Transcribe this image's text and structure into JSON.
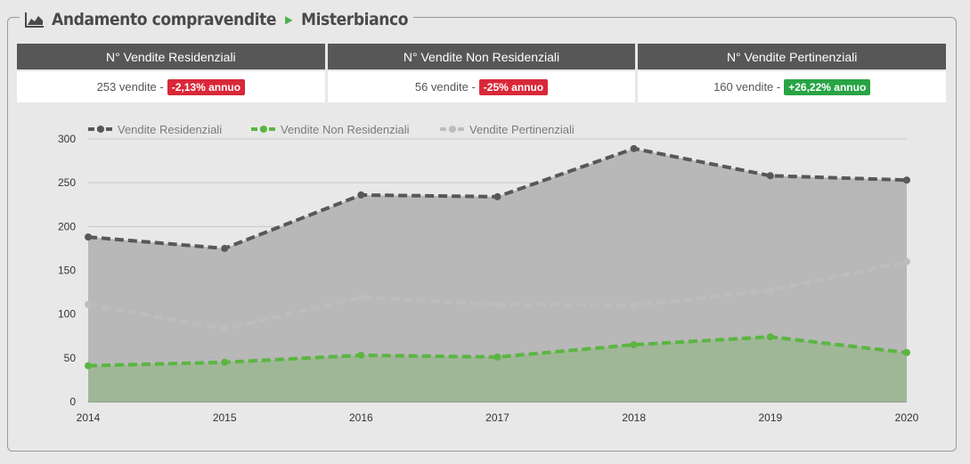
{
  "header": {
    "title": "Andamento compravendite",
    "location": "Misterbianco"
  },
  "stats": [
    {
      "label": "N° Vendite Residenziali",
      "value": "253 vendite -",
      "badge": "-2,13% annuo",
      "trend": "neg"
    },
    {
      "label": "N° Vendite Non Residenziali",
      "value": "56 vendite -",
      "badge": "-25% annuo",
      "trend": "neg"
    },
    {
      "label": "N° Vendite Pertinenziali",
      "value": "160 vendite -",
      "badge": "+26,22% annuo",
      "trend": "pos"
    }
  ],
  "colors": {
    "residenziali": "#585858",
    "non_residenziali": "#5bb542",
    "pertinenziali": "#bdbdbd",
    "badge_negative": "#d9283a",
    "badge_positive": "#28a445"
  },
  "chart_data": {
    "type": "area",
    "categories": [
      "2014",
      "2015",
      "2016",
      "2017",
      "2018",
      "2019",
      "2020"
    ],
    "series": [
      {
        "name": "Vendite Residenziali",
        "values": [
          188,
          175,
          236,
          234,
          289,
          258,
          253
        ]
      },
      {
        "name": "Vendite Non Residenziali",
        "values": [
          41,
          45,
          53,
          51,
          65,
          74,
          56
        ]
      },
      {
        "name": "Vendite Pertinenziali",
        "values": [
          111,
          83,
          119,
          111,
          110,
          127,
          160
        ]
      }
    ],
    "ylim": [
      0,
      300
    ],
    "yticks": [
      "0",
      "50",
      "100",
      "150",
      "200",
      "250",
      "300"
    ],
    "grid": true,
    "legend": "top-left"
  }
}
